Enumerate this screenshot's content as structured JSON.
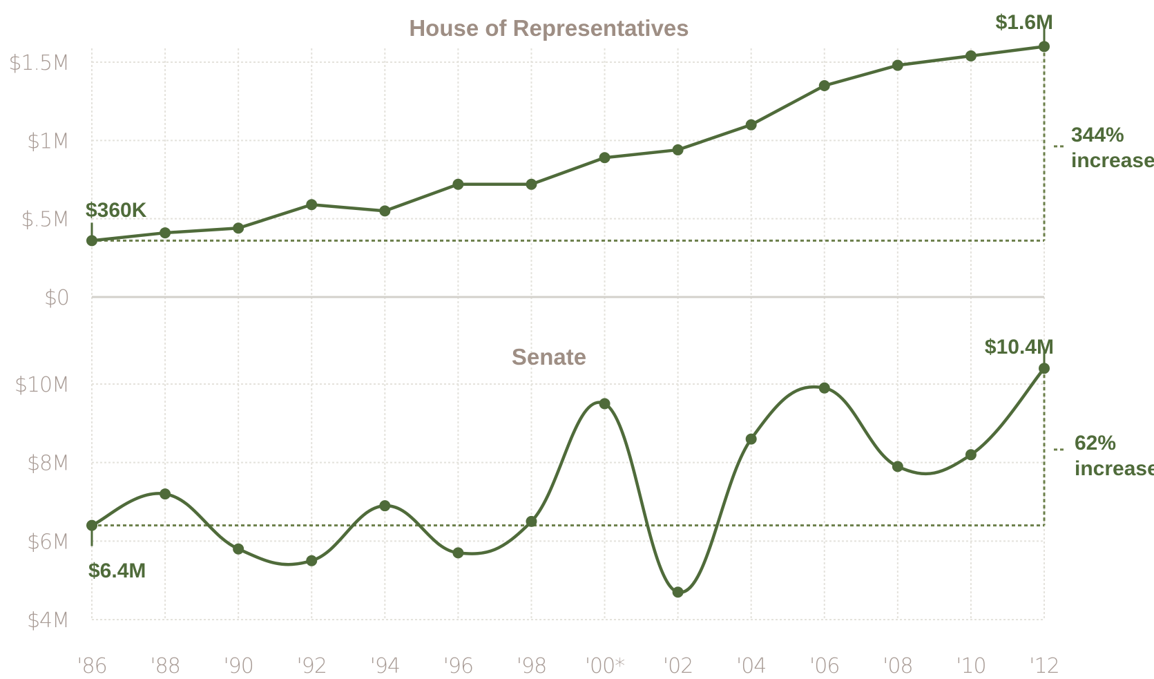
{
  "colors": {
    "line": "#4f6b3a",
    "ticks": "#a79a94",
    "title": "#9e8e84",
    "grid": "#e4e2dc"
  },
  "chart_data": [
    {
      "type": "line",
      "title": "House of Representatives",
      "categories": [
        "'86",
        "'88",
        "'90",
        "'92",
        "'94",
        "'96",
        "'98",
        "'00*",
        "'02",
        "'04",
        "'06",
        "'08",
        "'10",
        "'12"
      ],
      "series": [
        {
          "values": [
            0.36,
            0.41,
            0.44,
            0.59,
            0.55,
            0.72,
            0.72,
            0.89,
            0.94,
            1.1,
            1.35,
            1.48,
            1.54,
            1.6
          ]
        }
      ],
      "yticks": [
        {
          "value": 0,
          "label": "$0"
        },
        {
          "value": 0.5,
          "label": "$.5M"
        },
        {
          "value": 1,
          "label": "$1M"
        },
        {
          "value": 1.5,
          "label": "$1.5M"
        }
      ],
      "ylim": [
        0,
        1.6
      ],
      "start_label": "$360K",
      "end_label": "$1.6M",
      "change_label_1": "344%",
      "change_label_2": "increase",
      "grid": true
    },
    {
      "type": "line",
      "title": "Senate",
      "categories": [
        "'86",
        "'88",
        "'90",
        "'92",
        "'94",
        "'96",
        "'98",
        "'00*",
        "'02",
        "'04",
        "'06",
        "'08",
        "'10",
        "'12"
      ],
      "series": [
        {
          "values": [
            6.4,
            7.2,
            5.8,
            5.5,
            6.9,
            5.7,
            6.5,
            9.5,
            4.7,
            8.6,
            9.9,
            7.9,
            8.2,
            10.4
          ]
        }
      ],
      "yticks": [
        {
          "value": 4,
          "label": "$4M"
        },
        {
          "value": 6,
          "label": "$6M"
        },
        {
          "value": 8,
          "label": "$8M"
        },
        {
          "value": 10,
          "label": "$10M"
        }
      ],
      "ylim": [
        4,
        10.4
      ],
      "start_label": "$6.4M",
      "end_label": "$10.4M",
      "change_label_1": "62%",
      "change_label_2": "increase",
      "grid": true
    }
  ]
}
